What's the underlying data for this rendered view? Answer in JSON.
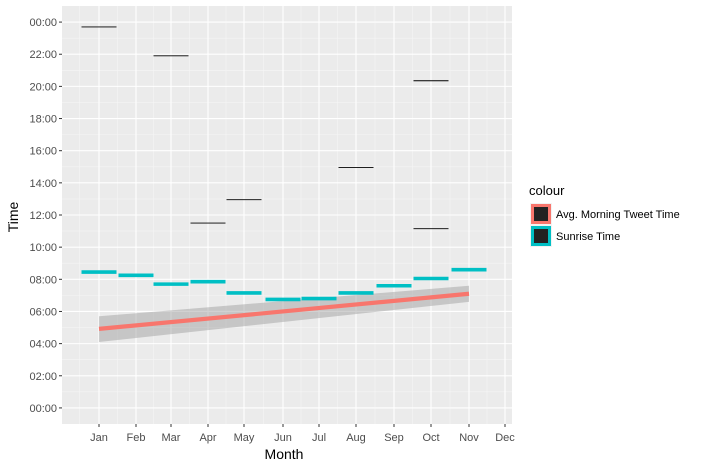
{
  "chart_data": {
    "type": "line",
    "xlabel": "Month",
    "ylabel": "Time",
    "x_ticks": [
      "Jan",
      "Feb",
      "Mar",
      "Apr",
      "May",
      "Jun",
      "Jul",
      "Aug",
      "Sep",
      "Oct",
      "Nov",
      "Dec"
    ],
    "y_ticks": [
      "00:00",
      "02:00",
      "04:00",
      "06:00",
      "08:00",
      "10:00",
      "12:00",
      "14:00",
      "16:00",
      "18:00",
      "20:00",
      "22:00",
      "00:00"
    ],
    "ylim_hours": [
      -1,
      25
    ],
    "grid": true,
    "legend": {
      "title": "colour",
      "position": "right",
      "entries": [
        {
          "label": "Avg. Morning Tweet Time",
          "color": "#F8766D"
        },
        {
          "label": "Sunrise Time",
          "color": "#00BFC4"
        }
      ]
    },
    "series": [
      {
        "name": "Sunrise Time",
        "kind": "segments",
        "color": "#00BFC4",
        "data": [
          {
            "month": "Jan",
            "time": "08:27"
          },
          {
            "month": "Feb",
            "time": "08:15"
          },
          {
            "month": "Mar",
            "time": "07:42"
          },
          {
            "month": "Apr",
            "time": "07:51"
          },
          {
            "month": "May",
            "time": "07:09"
          },
          {
            "month": "Jun",
            "time": "06:45"
          },
          {
            "month": "Jul",
            "time": "06:48"
          },
          {
            "month": "Aug",
            "time": "07:09"
          },
          {
            "month": "Sep",
            "time": "07:36"
          },
          {
            "month": "Oct",
            "time": "08:03"
          },
          {
            "month": "Nov",
            "time": "08:36"
          }
        ]
      },
      {
        "kind": "segments",
        "color": "#000000",
        "data": [
          {
            "month": "Jan",
            "time": "23:42"
          },
          {
            "month": "Mar",
            "time": "21:54"
          },
          {
            "month": "Apr",
            "time": "11:30"
          },
          {
            "month": "May",
            "time": "12:57"
          },
          {
            "month": "Aug",
            "time": "14:57"
          },
          {
            "month": "Oct",
            "time": "20:21"
          },
          {
            "month": "Oct",
            "time": "11:09"
          }
        ]
      },
      {
        "name": "Avg. Morning Tweet Time",
        "kind": "trend",
        "color": "#F8766D",
        "data": [
          {
            "month": "Jan",
            "time": "04:55"
          },
          {
            "month": "Nov",
            "time": "07:06"
          }
        ],
        "ci_start": [
          "04:06",
          "05:42"
        ],
        "ci_end": [
          "06:36",
          "07:36"
        ]
      }
    ]
  }
}
